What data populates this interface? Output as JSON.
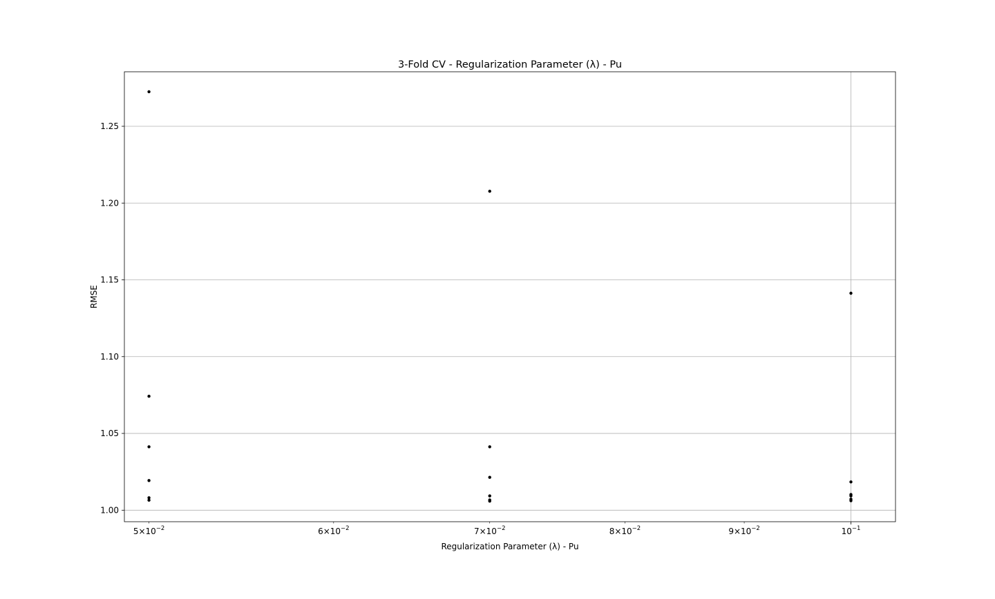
{
  "chart_data": {
    "type": "scatter",
    "title": "3-Fold CV - Regularization Parameter (λ) - Pu",
    "xlabel": "Regularization Parameter (λ) - Pu",
    "ylabel": "RMSE",
    "xscale": "log",
    "xlim": [
      0.0488,
      0.1045
    ],
    "ylim": [
      0.9925,
      1.2855
    ],
    "x_ticks": [
      {
        "value": 0.05,
        "mantissa": "5",
        "exponent": "−2"
      },
      {
        "value": 0.06,
        "mantissa": "6",
        "exponent": "−2"
      },
      {
        "value": 0.07,
        "mantissa": "7",
        "exponent": "−2"
      },
      {
        "value": 0.08,
        "mantissa": "8",
        "exponent": "−2"
      },
      {
        "value": 0.09,
        "mantissa": "9",
        "exponent": "−2"
      },
      {
        "value": 0.1,
        "mantissa": "",
        "exponent": "−1"
      }
    ],
    "y_ticks": [
      {
        "value": 1.0,
        "label": "1.00"
      },
      {
        "value": 1.05,
        "label": "1.05"
      },
      {
        "value": 1.1,
        "label": "1.10"
      },
      {
        "value": 1.15,
        "label": "1.15"
      },
      {
        "value": 1.2,
        "label": "1.20"
      },
      {
        "value": 1.25,
        "label": "1.25"
      }
    ],
    "grid": "on",
    "marker_color": "#000000",
    "points": [
      {
        "x": 0.05,
        "y": 1.2725
      },
      {
        "x": 0.05,
        "y": 1.0742
      },
      {
        "x": 0.05,
        "y": 1.0413
      },
      {
        "x": 0.05,
        "y": 1.0193
      },
      {
        "x": 0.05,
        "y": 1.0081
      },
      {
        "x": 0.05,
        "y": 1.0065
      },
      {
        "x": 0.07,
        "y": 1.2077
      },
      {
        "x": 0.07,
        "y": 1.0413
      },
      {
        "x": 0.07,
        "y": 1.0214
      },
      {
        "x": 0.07,
        "y": 1.0093
      },
      {
        "x": 0.07,
        "y": 1.0067
      },
      {
        "x": 0.07,
        "y": 1.0059
      },
      {
        "x": 0.1,
        "y": 1.1413
      },
      {
        "x": 0.1,
        "y": 1.0184
      },
      {
        "x": 0.1,
        "y": 1.0102
      },
      {
        "x": 0.1,
        "y": 1.0093
      },
      {
        "x": 0.1,
        "y": 1.0072
      },
      {
        "x": 0.1,
        "y": 1.0062
      }
    ]
  }
}
